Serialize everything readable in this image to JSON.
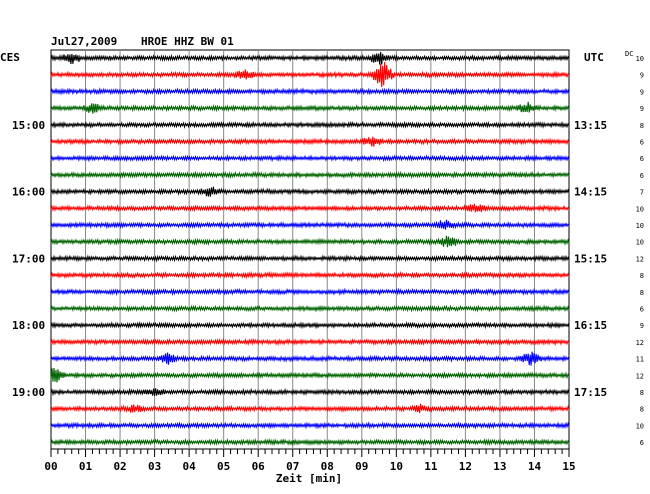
{
  "header": {
    "date": "Jul27,2009",
    "station": "HROE HHZ BW 01",
    "left_timezone": "CES",
    "right_timezone": "UTC",
    "dc_label": "DC"
  },
  "chart_data": {
    "type": "line",
    "title": "Jul27,2009   HROE HHZ BW 01",
    "xlabel": "Zeit [min]",
    "x_ticks": [
      "00",
      "01",
      "02",
      "03",
      "04",
      "05",
      "06",
      "07",
      "08",
      "09",
      "10",
      "11",
      "12",
      "13",
      "14",
      "15"
    ],
    "xlim": [
      0,
      15
    ],
    "grid": true,
    "trace_colors": [
      "#000000",
      "#ff0000",
      "#0000ff",
      "#006400"
    ],
    "left_time_labels": [
      {
        "row": 4,
        "text": "15:00"
      },
      {
        "row": 8,
        "text": "16:00"
      },
      {
        "row": 12,
        "text": "17:00"
      },
      {
        "row": 16,
        "text": "18:00"
      },
      {
        "row": 20,
        "text": "19:00"
      }
    ],
    "right_time_labels": [
      {
        "row": 4,
        "text": "13:15"
      },
      {
        "row": 8,
        "text": "14:15"
      },
      {
        "row": 12,
        "text": "15:15"
      },
      {
        "row": 16,
        "text": "16:15"
      },
      {
        "row": 20,
        "text": "17:15"
      }
    ],
    "dc_offsets": [
      10,
      9,
      9,
      9,
      8,
      6,
      6,
      6,
      7,
      10,
      10,
      10,
      12,
      8,
      8,
      6,
      9,
      12,
      11,
      12,
      8,
      8,
      10,
      6
    ],
    "events": [
      {
        "row": 1,
        "minute": 9.6,
        "amplitude": 14
      },
      {
        "row": 0,
        "minute": 9.5,
        "amplitude": 6
      },
      {
        "row": 0,
        "minute": 0.6,
        "amplitude": 5
      },
      {
        "row": 3,
        "minute": 13.8,
        "amplitude": 5
      },
      {
        "row": 3,
        "minute": 1.2,
        "amplitude": 4
      },
      {
        "row": 1,
        "minute": 5.6,
        "amplitude": 4
      },
      {
        "row": 5,
        "minute": 9.3,
        "amplitude": 4
      },
      {
        "row": 8,
        "minute": 4.6,
        "amplitude": 4
      },
      {
        "row": 9,
        "minute": 12.3,
        "amplitude": 4
      },
      {
        "row": 10,
        "minute": 11.4,
        "amplitude": 4
      },
      {
        "row": 11,
        "minute": 11.5,
        "amplitude": 5
      },
      {
        "row": 18,
        "minute": 3.4,
        "amplitude": 5
      },
      {
        "row": 18,
        "minute": 13.9,
        "amplitude": 6
      },
      {
        "row": 19,
        "minute": 0.1,
        "amplitude": 7
      },
      {
        "row": 20,
        "minute": 3.0,
        "amplitude": 3
      },
      {
        "row": 21,
        "minute": 2.4,
        "amplitude": 3
      },
      {
        "row": 21,
        "minute": 10.7,
        "amplitude": 3
      }
    ]
  }
}
